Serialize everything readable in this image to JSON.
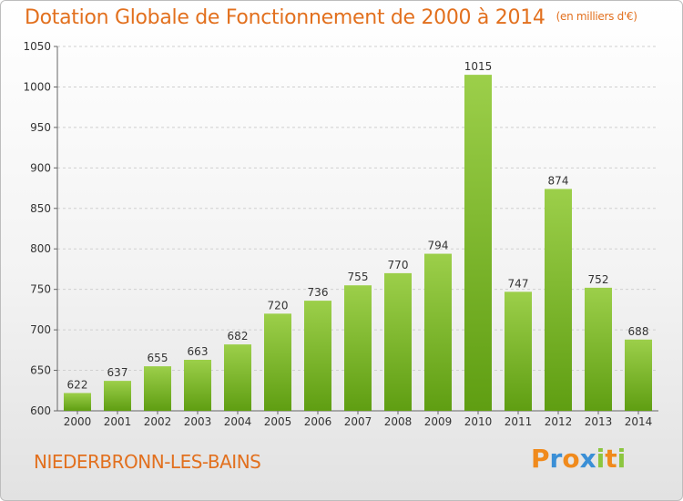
{
  "title": "Dotation Globale de Fonctionnement de 2000 à 2014",
  "unit_label": "(en milliers d'€)",
  "commune": "NIEDERBRONN-LES-BAINS",
  "logo": {
    "text": "Proxiti",
    "letters": [
      {
        "char": "P",
        "color": "#f08a1c"
      },
      {
        "char": "r",
        "color": "#3a8fd6"
      },
      {
        "char": "o",
        "color": "#f08a1c"
      },
      {
        "char": "x",
        "color": "#3a8fd6"
      },
      {
        "char": "i",
        "color": "#8cc63f"
      },
      {
        "char": "t",
        "color": "#f08a1c"
      },
      {
        "char": "i",
        "color": "#8cc63f"
      }
    ]
  },
  "colors": {
    "title": "#e2701e",
    "bar_top": "#9ccf4a",
    "bar_bottom": "#5f9e12",
    "grid": "#d0d0d0",
    "text": "#333333"
  },
  "chart_data": {
    "type": "bar",
    "title": "Dotation Globale de Fonctionnement de 2000 à 2014",
    "xlabel": "",
    "ylabel": "",
    "ylim": [
      600,
      1050
    ],
    "yticks": [
      600,
      650,
      700,
      750,
      800,
      850,
      900,
      950,
      1000,
      1050
    ],
    "grid": true,
    "categories": [
      "2000",
      "2001",
      "2002",
      "2003",
      "2004",
      "2005",
      "2006",
      "2007",
      "2008",
      "2009",
      "2010",
      "2011",
      "2012",
      "2013",
      "2014"
    ],
    "values": [
      622,
      637,
      655,
      663,
      682,
      720,
      736,
      755,
      770,
      794,
      1015,
      747,
      874,
      752,
      688
    ],
    "data_labels": [
      "622",
      "637",
      "655",
      "663",
      "682",
      "720",
      "736",
      "755",
      "770",
      "794",
      "1015",
      "747",
      "874",
      "752",
      "688"
    ]
  }
}
